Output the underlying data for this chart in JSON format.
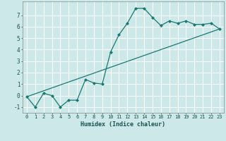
{
  "xlabel": "Humidex (Indice chaleur)",
  "line1_x": [
    0,
    1,
    2,
    3,
    4,
    5,
    6,
    7,
    8,
    9,
    10,
    11,
    12,
    13,
    14,
    15,
    16,
    17,
    18,
    19,
    20,
    21,
    22,
    23
  ],
  "line1_y": [
    -0.1,
    -1.0,
    0.2,
    0.0,
    -1.0,
    -0.4,
    -0.4,
    1.4,
    1.1,
    1.0,
    3.8,
    5.3,
    6.3,
    7.6,
    7.6,
    6.8,
    6.1,
    6.5,
    6.3,
    6.5,
    6.2,
    6.2,
    6.3,
    5.8
  ],
  "line2_x": [
    0,
    23
  ],
  "line2_y": [
    -0.1,
    5.8
  ],
  "line_color": "#1a7870",
  "bg_color": "#cce8e8",
  "grid_color": "#ffffff",
  "ylim": [
    -1.5,
    8.2
  ],
  "xlim": [
    -0.5,
    23.5
  ],
  "yticks": [
    -1,
    0,
    1,
    2,
    3,
    4,
    5,
    6,
    7
  ],
  "xticks": [
    0,
    1,
    2,
    3,
    4,
    5,
    6,
    7,
    8,
    9,
    10,
    11,
    12,
    13,
    14,
    15,
    16,
    17,
    18,
    19,
    20,
    21,
    22,
    23
  ],
  "tick_fontsize": 5.0,
  "xlabel_fontsize": 6.0
}
